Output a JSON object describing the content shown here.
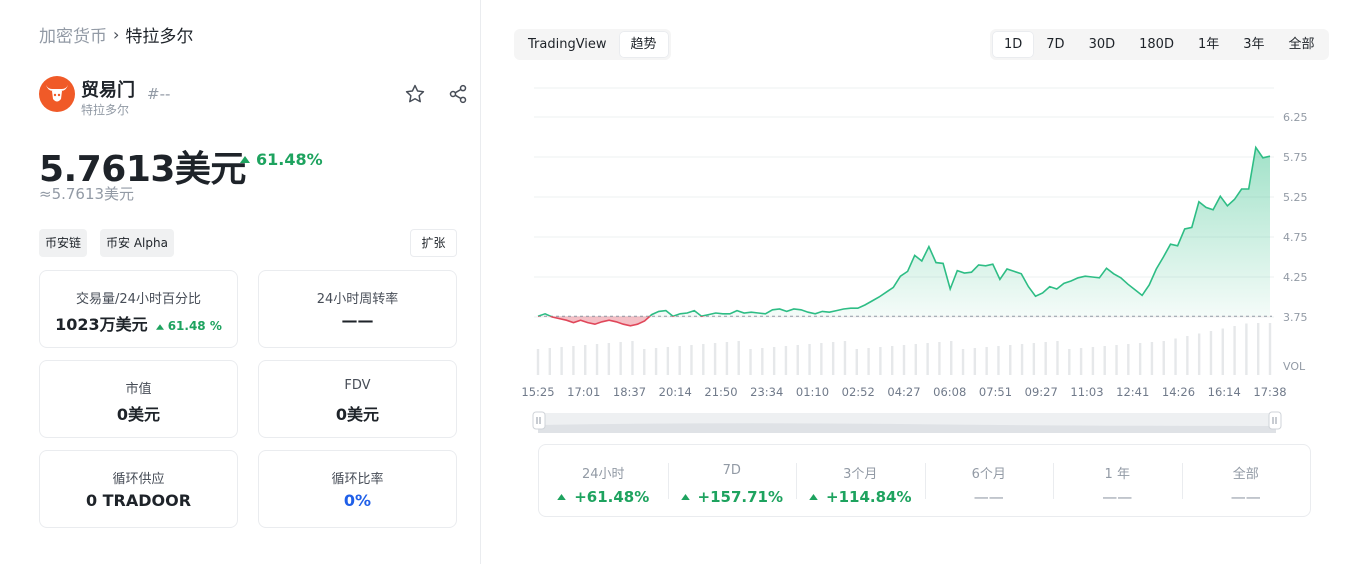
{
  "breadcrumb": {
    "parent": "加密货币",
    "separator": "›",
    "current": "特拉多尔"
  },
  "token": {
    "name": "贸易门",
    "subtitle": "特拉多尔",
    "rank": "#--",
    "price": "5.7613美元",
    "change": "61.48%",
    "approx": "≈5.7613美元"
  },
  "tags": [
    "币安链",
    "币安 Alpha"
  ],
  "expand_label": "扩张",
  "stats": {
    "volume": {
      "label": "交易量/24小时百分比",
      "value": "1023万美元",
      "pct": "61.48 %"
    },
    "turnover": {
      "label": "24小时周转率",
      "value": "——"
    },
    "market_cap": {
      "label": "市值",
      "value": "0美元"
    },
    "fdv": {
      "label": "FDV",
      "value": "0美元"
    },
    "circulating": {
      "label": "循环供应",
      "value": "0 TRADOOR"
    },
    "circ_ratio": {
      "label": "循环比率",
      "value": "0%"
    }
  },
  "chart_tabs": [
    "TradingView",
    "趋势"
  ],
  "ranges": [
    "1D",
    "7D",
    "30D",
    "180D",
    "1年",
    "3年",
    "全部"
  ],
  "colors": {
    "up": "#1ea35f",
    "down": "#e0475a",
    "line": "#2ebd85",
    "accent_blue": "#1f5fe8",
    "logo": "#f05a28"
  },
  "chart_data": {
    "type": "line",
    "x_ticks": [
      "15:25",
      "17:01",
      "18:37",
      "20:14",
      "21:50",
      "23:34",
      "01:10",
      "02:52",
      "04:27",
      "06:08",
      "07:51",
      "09:27",
      "11:03",
      "12:41",
      "14:26",
      "16:14",
      "17:38"
    ],
    "y_ticks": [
      "6.25",
      "5.75",
      "5.25",
      "4.75",
      "4.25",
      "3.75"
    ],
    "volume_label": "VOL",
    "ylim": [
      3.75,
      6.25
    ],
    "baseline": 3.76,
    "values": [
      3.76,
      3.79,
      3.75,
      3.73,
      3.71,
      3.68,
      3.71,
      3.68,
      3.66,
      3.69,
      3.71,
      3.69,
      3.66,
      3.64,
      3.66,
      3.7,
      3.78,
      3.82,
      3.83,
      3.76,
      3.79,
      3.8,
      3.83,
      3.76,
      3.78,
      3.8,
      3.79,
      3.79,
      3.83,
      3.8,
      3.81,
      3.8,
      3.79,
      3.84,
      3.85,
      3.82,
      3.85,
      3.84,
      3.81,
      3.79,
      3.82,
      3.81,
      3.83,
      3.85,
      3.86,
      3.86,
      3.9,
      3.95,
      4.0,
      4.06,
      4.12,
      4.26,
      4.32,
      4.52,
      4.45,
      4.63,
      4.43,
      4.42,
      4.1,
      4.33,
      4.3,
      4.31,
      4.4,
      4.39,
      4.41,
      4.22,
      4.35,
      4.32,
      4.29,
      4.13,
      4.01,
      4.05,
      4.13,
      4.1,
      4.17,
      4.2,
      4.24,
      4.26,
      4.25,
      4.24,
      4.36,
      4.29,
      4.24,
      4.16,
      4.09,
      4.02,
      4.15,
      4.35,
      4.5,
      4.66,
      4.64,
      4.85,
      4.87,
      5.19,
      5.12,
      5.09,
      5.26,
      5.14,
      5.22,
      5.35,
      5.35,
      5.87,
      5.74,
      5.76
    ]
  },
  "performance": [
    {
      "label": "24小时",
      "value": "+61.48%",
      "up": true
    },
    {
      "label": "7D",
      "value": "+157.71%",
      "up": true
    },
    {
      "label": "3个月",
      "value": "+114.84%",
      "up": true
    },
    {
      "label": "6个月",
      "value": "——",
      "up": false
    },
    {
      "label": "1 年",
      "value": "——",
      "up": false
    },
    {
      "label": "全部",
      "value": "——",
      "up": false
    }
  ]
}
